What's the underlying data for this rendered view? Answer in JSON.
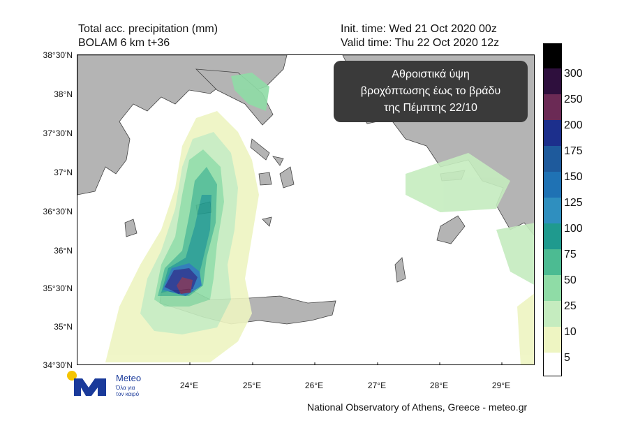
{
  "header": {
    "title_line1": "Total acc. precipitation (mm)",
    "title_line2": "BOLAM 6 km t+36",
    "init_time": "Init. time: Wed 21 Oct 2020 00z",
    "valid_time": "Valid time: Thu 22 Oct 2020 12z"
  },
  "info_box": {
    "line1": "Αθροιστικά ύψη",
    "line2": "βροχόπτωσης έως το βράδυ",
    "line3": "της Πέμπτης 22/10"
  },
  "axes": {
    "lat_labels": [
      "38°30'N",
      "38°N",
      "37°30'N",
      "37°N",
      "36°30'N",
      "36°N",
      "35°30'N",
      "35°N",
      "34°30'N"
    ],
    "lon_labels": [
      "24°E",
      "25°E",
      "26°E",
      "27°E",
      "28°E",
      "29°E"
    ]
  },
  "colorbar": {
    "levels": [
      "300",
      "250",
      "200",
      "175",
      "150",
      "125",
      "100",
      "75",
      "50",
      "25",
      "10",
      "5"
    ],
    "colors": [
      "#000000",
      "#2e0f3d",
      "#6b2a55",
      "#1c2f8c",
      "#1e5a9c",
      "#1f72b4",
      "#2f8fbf",
      "#1f9a8e",
      "#4cbb92",
      "#8fdca6",
      "#c5ecbf",
      "#eef5c2",
      "#ffffff"
    ]
  },
  "logo": {
    "brand": "Meteo",
    "tagline_line1": "Όλα για",
    "tagline_line2": "τον καιρό"
  },
  "footer": {
    "credit": "National Observatory of Athens, Greece - meteo.gr"
  }
}
